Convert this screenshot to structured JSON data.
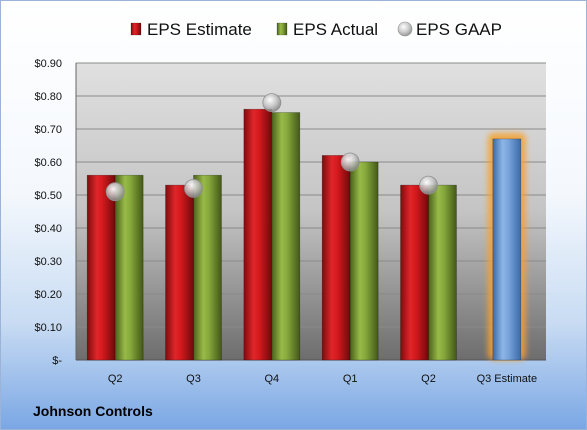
{
  "company": "Johnson Controls",
  "chart_data": {
    "type": "bar",
    "categories": [
      "Q2",
      "Q3",
      "Q4",
      "Q1",
      "Q2",
      "Q3 Estimate"
    ],
    "series": [
      {
        "name": "EPS Estimate",
        "type": "bar",
        "values": [
          0.56,
          0.53,
          0.76,
          0.62,
          0.53,
          null
        ],
        "color": "#c0191c"
      },
      {
        "name": "EPS Actual",
        "type": "bar",
        "values": [
          0.56,
          0.56,
          0.75,
          0.6,
          0.53,
          null
        ],
        "color": "#7a9a32"
      },
      {
        "name": "EPS GAAP",
        "type": "marker",
        "values": [
          0.51,
          0.52,
          0.78,
          0.6,
          0.53,
          null
        ],
        "color": "#b8b8b8"
      },
      {
        "name": "",
        "type": "bar",
        "values": [
          null,
          null,
          null,
          null,
          null,
          0.67
        ],
        "color": "#5b8fd0",
        "highlight": true
      }
    ],
    "y_tick_labels": [
      "$-",
      "$0.10",
      "$0.20",
      "$0.30",
      "$0.40",
      "$0.50",
      "$0.60",
      "$0.70",
      "$0.80",
      "$0.90"
    ],
    "ylim": [
      0,
      0.9
    ],
    "grid": true,
    "legend": "top"
  }
}
